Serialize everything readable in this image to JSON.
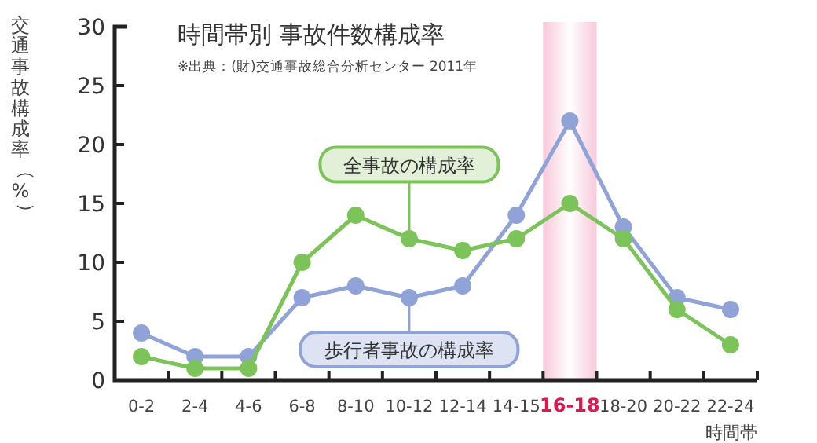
{
  "chart_data": {
    "type": "line",
    "title": "時間帯別 事故件数構成率",
    "subtitle": "※出典：(財)交通事故総合分析センター 2011年",
    "xlabel": "時間帯",
    "ylabel": "交通事故構成率（%）",
    "categories": [
      "0-2",
      "2-4",
      "4-6",
      "6-8",
      "8-10",
      "10-12",
      "12-14",
      "14-15",
      "16-18",
      "18-20",
      "20-22",
      "22-24"
    ],
    "series": [
      {
        "name": "歩行者事故の構成率",
        "color": "#8fa3d9",
        "values": [
          4,
          2,
          2,
          7,
          8,
          7,
          8,
          14,
          22,
          13,
          7,
          6
        ]
      },
      {
        "name": "全事故の構成率",
        "color": "#7cc35a",
        "values": [
          2,
          1,
          1,
          10,
          14,
          12,
          11,
          12,
          15,
          12,
          6,
          3
        ]
      }
    ],
    "ylim": [
      0,
      30
    ],
    "yticks": [
      0,
      5,
      10,
      15,
      20,
      25,
      30
    ],
    "marker": "circle",
    "line_style": "solid",
    "grid": false,
    "bands": [
      {
        "axis": "x",
        "from": "16-18",
        "to": "16-18",
        "color": "#f7c8da"
      }
    ]
  }
}
